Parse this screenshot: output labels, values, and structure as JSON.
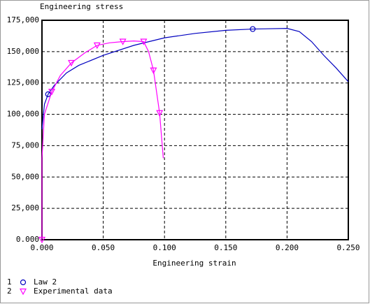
{
  "chart_data": {
    "type": "line",
    "title": "Engineering stress",
    "x_label": "Engineering strain",
    "xlim": [
      0,
      0.25
    ],
    "ylim": [
      0,
      175000
    ],
    "xticks": [
      {
        "value": 0,
        "label": "0.000"
      },
      {
        "value": 0.05,
        "label": "0.050"
      },
      {
        "value": 0.1,
        "label": "0.100"
      },
      {
        "value": 0.15,
        "label": "0.150"
      },
      {
        "value": 0.2,
        "label": "0.200"
      },
      {
        "value": 0.25,
        "label": "0.250"
      }
    ],
    "yticks": [
      {
        "value": 0,
        "label": "0.000"
      },
      {
        "value": 25000,
        "label": "25,000"
      },
      {
        "value": 50000,
        "label": "50,000"
      },
      {
        "value": 75000,
        "label": "75,000"
      },
      {
        "value": 100000,
        "label": "100,000"
      },
      {
        "value": 125000,
        "label": "125,000"
      },
      {
        "value": 150000,
        "label": "150,000"
      },
      {
        "value": 175000,
        "label": "175,000"
      }
    ],
    "grid": true,
    "series": [
      {
        "id": "1",
        "name": "Law 2",
        "color": "#0000c0",
        "marker": "circle",
        "markers": [
          2,
          11
        ],
        "x": [
          0,
          0.002,
          0.005,
          0.01,
          0.02,
          0.03,
          0.05,
          0.075,
          0.1,
          0.125,
          0.15,
          0.172,
          0.2,
          0.21,
          0.22,
          0.23,
          0.24,
          0.25
        ],
        "values": [
          88000,
          108000,
          116000,
          123000,
          133000,
          139000,
          147000,
          155000,
          161000,
          164500,
          167000,
          168000,
          168500,
          166000,
          158000,
          147000,
          137000,
          126000
        ]
      },
      {
        "id": "2",
        "name": "Experimental data",
        "color": "#ff00ff",
        "marker": "triangle-down",
        "markers": [
          0,
          3,
          5,
          7,
          9,
          11,
          13,
          14
        ],
        "x": [
          0,
          0,
          0.002,
          0.008,
          0.015,
          0.024,
          0.035,
          0.045,
          0.055,
          0.066,
          0.075,
          0.083,
          0.087,
          0.091,
          0.096,
          0.099
        ],
        "values": [
          0,
          65000,
          100000,
          118000,
          131000,
          141000,
          149000,
          155000,
          157000,
          158000,
          158500,
          158000,
          150000,
          135000,
          101000,
          65000
        ]
      }
    ]
  }
}
